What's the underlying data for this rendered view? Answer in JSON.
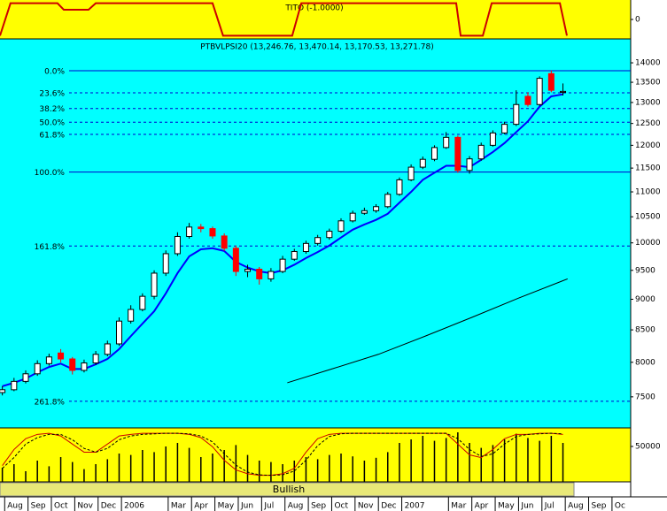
{
  "chart_data": [
    {
      "type": "line",
      "title": "TITO (-1.0000)",
      "xlim": [
        0.8,
        27.8
      ],
      "ylim": [
        -1.2,
        1.2
      ],
      "yticks": [
        0
      ],
      "series": [
        {
          "color": "#cc0000",
          "x": [
            0.8,
            1.25,
            3.26,
            3.53,
            4.59,
            4.9,
            9.9,
            10.35,
            13.31,
            13.7,
            20.33,
            20.52,
            21.47,
            21.85,
            24.77,
            25.07
          ],
          "values": [
            -1,
            1,
            1,
            0.6,
            0.6,
            1,
            1,
            -1,
            -1,
            1,
            1,
            -1,
            -1,
            1,
            1,
            -1
          ]
        }
      ]
    },
    {
      "type": "candlestick",
      "title": "PTBVLPSI20 (13,246.76, 13,470.14, 13,170.53, 13,271.78)",
      "log_scale": true,
      "xlim": [
        0.8,
        27.8
      ],
      "ylim": [
        7077,
        14640
      ],
      "yticks": [
        7500,
        8000,
        8500,
        9000,
        9500,
        10000,
        10500,
        11000,
        11500,
        12000,
        12500,
        13000,
        13500,
        14000
      ],
      "up_color": "#ffffff",
      "down_color": "#ff0000",
      "x": [
        0.9,
        1.4,
        1.9,
        2.4,
        2.9,
        3.4,
        3.9,
        4.4,
        4.9,
        5.4,
        5.9,
        6.4,
        6.9,
        7.4,
        7.9,
        8.4,
        8.9,
        9.4,
        9.9,
        10.4,
        10.9,
        11.4,
        11.9,
        12.4,
        12.9,
        13.4,
        13.9,
        14.4,
        14.9,
        15.4,
        15.9,
        16.4,
        16.9,
        17.4,
        17.9,
        18.4,
        18.9,
        19.4,
        19.9,
        20.4,
        20.9,
        21.4,
        21.9,
        22.4,
        22.9,
        23.4,
        23.9,
        24.4,
        24.9
      ],
      "open": [
        7560,
        7600,
        7720,
        7830,
        7980,
        8140,
        8050,
        7880,
        7990,
        8120,
        8280,
        8640,
        8830,
        9050,
        9450,
        9800,
        10120,
        10300,
        10270,
        10130,
        9900,
        9480,
        9520,
        9350,
        9480,
        9700,
        9840,
        9990,
        10100,
        10220,
        10420,
        10570,
        10620,
        10700,
        10950,
        11250,
        11520,
        11690,
        11950,
        12180,
        11450,
        11700,
        12000,
        12280,
        12480,
        13150,
        12950,
        13720,
        13246.76
      ],
      "high": [
        7650,
        7770,
        7880,
        8030,
        8130,
        8200,
        8080,
        8040,
        8170,
        8330,
        8700,
        8900,
        9100,
        9500,
        9860,
        10200,
        10380,
        10360,
        10310,
        10180,
        9950,
        9600,
        9560,
        9540,
        9760,
        9890,
        10040,
        10150,
        10270,
        10470,
        10620,
        10680,
        10750,
        11000,
        11300,
        11580,
        11750,
        12000,
        12300,
        12220,
        11760,
        12060,
        12340,
        12540,
        13300,
        13250,
        13650,
        13800,
        13470.14
      ],
      "low": [
        7520,
        7580,
        7690,
        7800,
        7950,
        8000,
        7820,
        7850,
        7960,
        8090,
        8250,
        8600,
        8800,
        9000,
        9400,
        9760,
        10080,
        10200,
        10080,
        9850,
        9400,
        9380,
        9250,
        9300,
        9450,
        9670,
        9800,
        9950,
        10060,
        10190,
        10390,
        10540,
        10580,
        10670,
        10920,
        11220,
        11480,
        11650,
        11920,
        11400,
        11380,
        11660,
        11970,
        12250,
        12440,
        12900,
        12920,
        13250,
        13170.53
      ],
      "close": [
        7600,
        7720,
        7830,
        7980,
        8080,
        8050,
        7880,
        7990,
        8120,
        8280,
        8640,
        8830,
        9050,
        9450,
        9800,
        10120,
        10300,
        10270,
        10130,
        9900,
        9480,
        9520,
        9350,
        9480,
        9700,
        9840,
        9990,
        10100,
        10220,
        10420,
        10570,
        10620,
        10700,
        10950,
        11250,
        11520,
        11690,
        11950,
        12180,
        11450,
        11700,
        12000,
        12280,
        12480,
        12950,
        12950,
        13600,
        13300,
        13271.78
      ],
      "lines": [
        {
          "color": "#0000ff",
          "width": 2,
          "x": [
            0.9,
            1.4,
            1.9,
            2.4,
            2.9,
            3.4,
            3.9,
            4.4,
            4.9,
            5.4,
            5.9,
            6.4,
            6.9,
            7.4,
            7.9,
            8.4,
            8.9,
            9.4,
            9.9,
            10.4,
            10.9,
            11.4,
            11.9,
            12.4,
            12.9,
            13.4,
            13.9,
            14.4,
            14.9,
            15.4,
            15.9,
            16.4,
            16.9,
            17.4,
            17.9,
            18.4,
            18.9,
            19.4,
            19.9,
            20.4,
            20.9,
            21.4,
            21.9,
            22.4,
            22.9,
            23.4,
            23.9,
            24.4,
            24.9
          ],
          "values": [
            7650,
            7700,
            7760,
            7850,
            7930,
            7980,
            7900,
            7900,
            7970,
            8050,
            8200,
            8400,
            8600,
            8800,
            9100,
            9450,
            9750,
            9880,
            9900,
            9850,
            9650,
            9550,
            9480,
            9450,
            9500,
            9600,
            9720,
            9830,
            9950,
            10100,
            10250,
            10350,
            10440,
            10560,
            10780,
            11000,
            11250,
            11400,
            11550,
            11550,
            11520,
            11680,
            11850,
            12050,
            12300,
            12550,
            12900,
            13150,
            13200
          ]
        },
        {
          "color": "#000000",
          "width": 1,
          "x": [
            13.1,
            15,
            17,
            19,
            21,
            23,
            25.1
          ],
          "values": [
            7700,
            7900,
            8120,
            8400,
            8700,
            9020,
            9350
          ]
        }
      ],
      "fib_color": "#0000cc",
      "fib_levels": [
        {
          "label": "0.0%",
          "value": 13795,
          "style": "solid"
        },
        {
          "label": "23.6%",
          "value": 13236,
          "style": "dashed"
        },
        {
          "label": "38.2%",
          "value": 12855,
          "style": "dashed"
        },
        {
          "label": "50.0%",
          "value": 12530,
          "style": "dashed"
        },
        {
          "label": "61.8%",
          "value": 12248,
          "style": "dashed"
        },
        {
          "label": "100.0%",
          "value": 11415,
          "style": "solid"
        },
        {
          "label": "161.8%",
          "value": 9941,
          "style": "dashed"
        },
        {
          "label": "261.8%",
          "value": 7438,
          "style": "dashed"
        }
      ]
    },
    {
      "type": "volume",
      "xlim": [
        0.8,
        27.8
      ],
      "ylim": [
        0,
        76250
      ],
      "yticks": [
        50000
      ],
      "color": "#000000",
      "x": [
        0.9,
        1.4,
        1.9,
        2.4,
        2.9,
        3.4,
        3.9,
        4.4,
        4.9,
        5.4,
        5.9,
        6.4,
        6.9,
        7.4,
        7.9,
        8.4,
        8.9,
        9.4,
        9.9,
        10.4,
        10.9,
        11.4,
        11.9,
        12.4,
        12.9,
        13.4,
        13.9,
        14.4,
        14.9,
        15.4,
        15.9,
        16.4,
        16.9,
        17.4,
        17.9,
        18.4,
        18.9,
        19.4,
        19.9,
        20.4,
        20.9,
        21.4,
        21.9,
        22.4,
        22.9,
        23.4,
        23.9,
        24.4,
        24.9
      ],
      "values": [
        20000,
        25000,
        15000,
        30000,
        22000,
        35000,
        28000,
        18000,
        25000,
        32000,
        40000,
        38000,
        45000,
        42000,
        50000,
        55000,
        48000,
        35000,
        40000,
        45000,
        52000,
        38000,
        30000,
        28000,
        25000,
        30000,
        35000,
        32000,
        38000,
        40000,
        36000,
        30000,
        34000,
        42000,
        55000,
        60000,
        65000,
        58000,
        62000,
        70000,
        55000,
        48000,
        52000,
        60000,
        68000,
        62000,
        58000,
        65000,
        55000
      ],
      "y2lim": [
        0,
        100
      ],
      "series": [
        {
          "color": "#cc0000",
          "axis": "y2",
          "dashed": false,
          "values": [
            30,
            60,
            80,
            88,
            90,
            85,
            70,
            55,
            55,
            70,
            85,
            88,
            90,
            90,
            90,
            90,
            88,
            82,
            65,
            40,
            22,
            15,
            12,
            12,
            15,
            25,
            55,
            80,
            88,
            90,
            90,
            90,
            90,
            90,
            90,
            90,
            90,
            90,
            90,
            70,
            50,
            45,
            60,
            80,
            88,
            88,
            90,
            90,
            88
          ]
        },
        {
          "color": "#000000",
          "axis": "y2",
          "dashed": true,
          "values": [
            25,
            45,
            70,
            82,
            88,
            88,
            78,
            62,
            55,
            62,
            78,
            85,
            88,
            89,
            90,
            90,
            89,
            85,
            74,
            52,
            31,
            18,
            13,
            12,
            13,
            20,
            40,
            67,
            84,
            89,
            90,
            90,
            90,
            90,
            90,
            90,
            90,
            90,
            90,
            80,
            60,
            47,
            52,
            70,
            84,
            88,
            89,
            90,
            89
          ]
        }
      ],
      "signal": "Bullish",
      "xticks": [
        {
          "value": 1,
          "label": "Aug"
        },
        {
          "value": 2,
          "label": "Sep"
        },
        {
          "value": 3,
          "label": "Oct"
        },
        {
          "value": 4,
          "label": "Nov"
        },
        {
          "value": 5,
          "label": "Dec"
        },
        {
          "value": 6,
          "label": "2006"
        },
        {
          "value": 8,
          "label": "Mar"
        },
        {
          "value": 9,
          "label": "Apr"
        },
        {
          "value": 10,
          "label": "May"
        },
        {
          "value": 11,
          "label": "Jun"
        },
        {
          "value": 12,
          "label": "Jul"
        },
        {
          "value": 13,
          "label": "Aug"
        },
        {
          "value": 14,
          "label": "Sep"
        },
        {
          "value": 15,
          "label": "Oct"
        },
        {
          "value": 16,
          "label": "Nov"
        },
        {
          "value": 17,
          "label": "Dec"
        },
        {
          "value": 18,
          "label": "2007"
        },
        {
          "value": 20,
          "label": "Mar"
        },
        {
          "value": 21,
          "label": "Apr"
        },
        {
          "value": 22,
          "label": "May"
        },
        {
          "value": 23,
          "label": "Jun"
        },
        {
          "value": 24,
          "label": "Jul"
        },
        {
          "value": 25,
          "label": "Aug"
        },
        {
          "value": 26,
          "label": "Sep"
        },
        {
          "value": 27,
          "label": "Oc"
        }
      ]
    }
  ]
}
